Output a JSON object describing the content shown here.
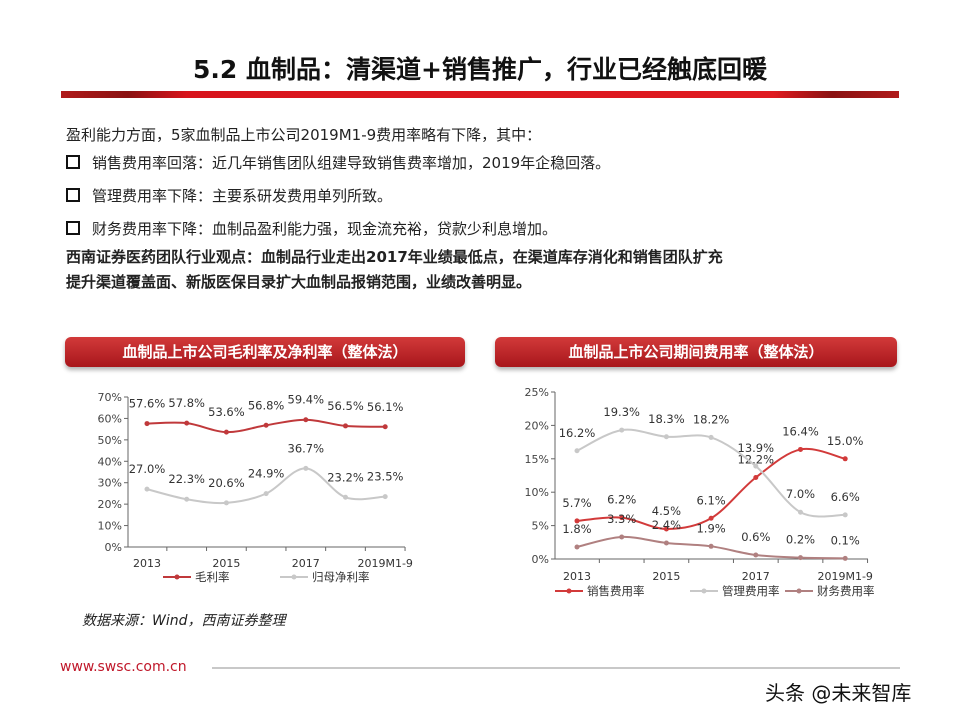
{
  "slide": {
    "title": "5.2 血制品：清渠道+销售推广，行业已经触底回暖",
    "intro": "盈利能力方面，5家血制品上市公司2019M1-9费用率略有下降，其中：",
    "bullets": [
      "销售费用率回落：近几年销售团队组建导致销售费率增加，2019年企稳回落。",
      "管理费用率下降：主要系研发费用单列所致。",
      "财务费用率下降：血制品盈利能力强，现金流充裕，贷款少利息增加。"
    ],
    "view_line1": "西南证券医药团队行业观点：血制品行业走出2017年业绩最低点，在渠道库存消化和销售团队扩充",
    "view_line2": "提升渠道覆盖面、新版医保目录扩大血制品报销范围，业绩改善明显。",
    "source": "数据来源：Wind，西南证券整理",
    "url": "www.swsc.com.cn",
    "watermark": "头条 @未来智库"
  },
  "chart_data": [
    {
      "type": "line",
      "title": "血制品上市公司毛利率及净利率（整体法）",
      "categories": [
        "2013",
        "2014",
        "2015",
        "2016",
        "2017",
        "2018",
        "2019M1-9"
      ],
      "tick_labels": [
        "2013",
        "",
        "2015",
        "",
        "2017",
        "",
        "2019M1-9"
      ],
      "yticks": [
        "0%",
        "10%",
        "20%",
        "30%",
        "40%",
        "50%",
        "60%",
        "70%"
      ],
      "ylim": [
        0,
        70
      ],
      "legend": "bottom",
      "grid": false,
      "series": [
        {
          "name": "毛利率",
          "color": "#c0393b",
          "values": [
            57.6,
            57.8,
            53.6,
            56.8,
            59.4,
            56.5,
            56.1
          ],
          "labels": [
            "57.6%",
            "57.8%",
            "53.6%",
            "56.8%",
            "59.4%",
            "56.5%",
            "56.1%"
          ]
        },
        {
          "name": "归母净利率",
          "color": "#c8c8c8",
          "values": [
            27.0,
            22.3,
            20.6,
            24.9,
            36.7,
            23.2,
            23.5
          ],
          "labels": [
            "27.0%",
            "22.3%",
            "20.6%",
            "24.9%",
            "36.7%",
            "23.2%",
            "23.5%"
          ]
        }
      ]
    },
    {
      "type": "line",
      "title": "血制品上市公司期间费用率（整体法）",
      "categories": [
        "2013",
        "2014",
        "2015",
        "2016",
        "2017",
        "2018",
        "2019M1-9"
      ],
      "tick_labels": [
        "2013",
        "",
        "2015",
        "",
        "2017",
        "",
        "2019M1-9"
      ],
      "yticks": [
        "0%",
        "5%",
        "10%",
        "15%",
        "20%",
        "25%"
      ],
      "ylim": [
        0,
        25
      ],
      "legend": "bottom",
      "grid": false,
      "series": [
        {
          "name": "销售费用率",
          "color": "#d23a3a",
          "values": [
            5.7,
            6.2,
            4.5,
            6.1,
            12.2,
            16.4,
            15.0
          ],
          "labels": [
            "5.7%",
            "6.2%",
            "4.5%",
            "6.1%",
            "12.2%",
            "16.4%",
            "15.0%"
          ]
        },
        {
          "name": "管理费用率",
          "color": "#c8c8c8",
          "values": [
            16.2,
            19.3,
            18.3,
            18.2,
            13.9,
            7.0,
            6.6
          ],
          "labels": [
            "16.2%",
            "19.3%",
            "18.3%",
            "18.2%",
            "13.9%",
            "7.0%",
            "6.6%"
          ]
        },
        {
          "name": "财务费用率",
          "color": "#b08080",
          "values": [
            1.8,
            3.3,
            2.4,
            1.9,
            0.6,
            0.2,
            0.1
          ],
          "labels": [
            "1.8%",
            "3.3%",
            "2.4%",
            "1.9%",
            "0.6%",
            "0.2%",
            "0.1%"
          ]
        }
      ]
    }
  ]
}
